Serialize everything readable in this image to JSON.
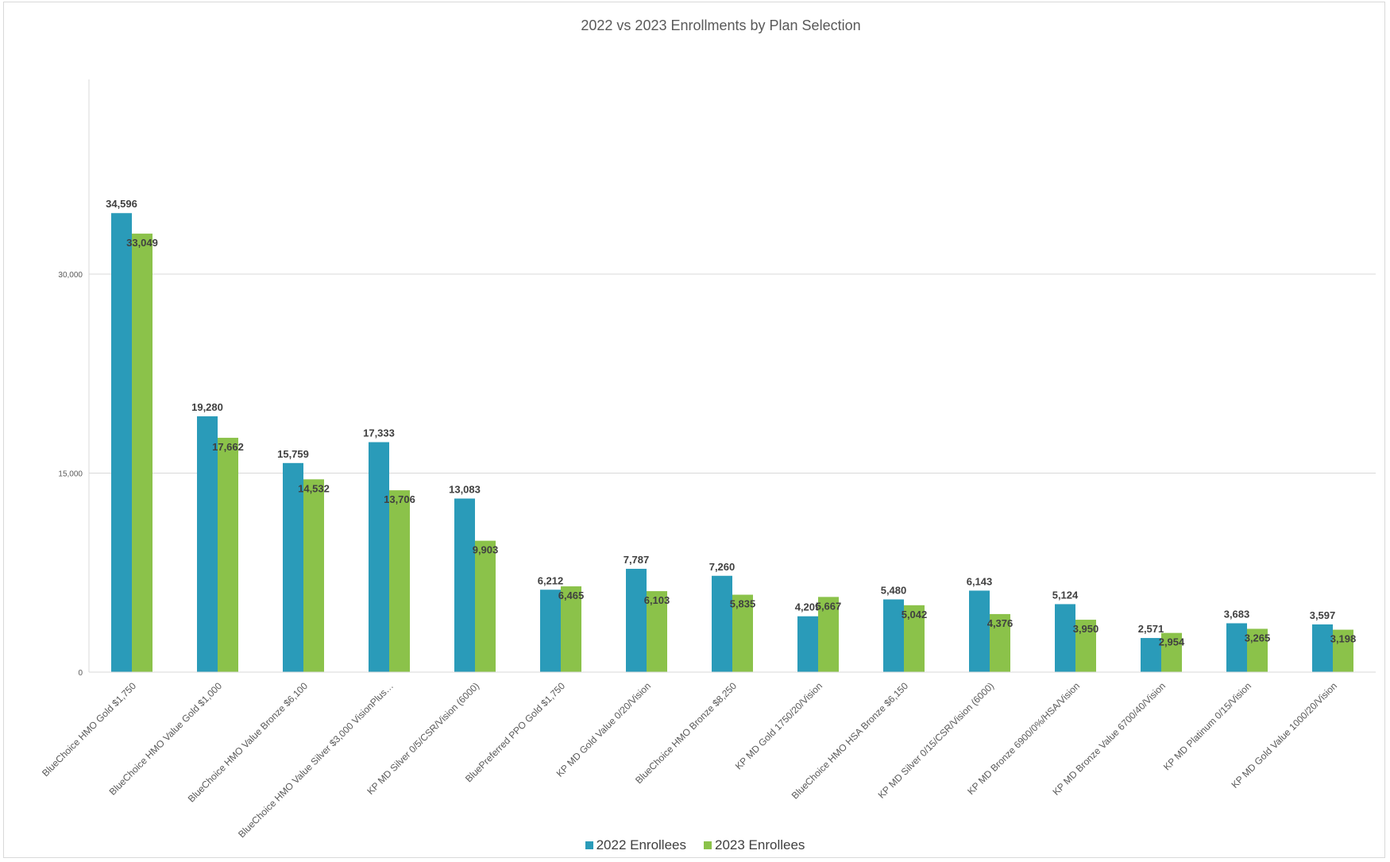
{
  "chart_data": {
    "type": "bar",
    "title": "2022 vs 2023 Enrollments by Plan Selection",
    "xlabel": "",
    "ylabel": "",
    "ylim": [
      0,
      40000
    ],
    "yticks": [
      0,
      15000,
      30000
    ],
    "ytick_labels": [
      "0",
      "15,000",
      "30,000"
    ],
    "grid": true,
    "legend_position": "bottom",
    "categories": [
      "BlueChoice HMO Gold $1,750",
      "BlueChoice HMO Value Gold $1,000",
      "BlueChoice HMO Value Bronze $6,100",
      "BlueChoice HMO Value Silver $3,000 VisionPlus…",
      "KP MD Silver 0/5/CSR/Vision (6000)",
      "BluePreferred PPO Gold $1,750",
      "KP MD Gold Value 0/20/Vision",
      "BlueChoice HMO Bronze $8,250",
      "KP MD Gold 1750/20/Vision",
      "BlueChoice HMO HSA Bronze $6,150",
      "KP MD Silver 0/15/CSR/Vision (6000)",
      "KP MD Bronze 6900/0%/HSA/Vision",
      "KP MD Bronze Value 6700/40/Vision",
      "KP MD Platinum 0/15/Vision",
      "KP MD Gold Value 1000/20/Vision"
    ],
    "series": [
      {
        "name": "2022 Enrollees",
        "color": "#2a9bb9",
        "values": [
          34596,
          19280,
          15759,
          17333,
          13083,
          6212,
          7787,
          7260,
          4209,
          5480,
          6143,
          5124,
          2571,
          3683,
          3597
        ],
        "labels": [
          "34,596",
          "19,280",
          "15,759",
          "17,333",
          "13,083",
          "6,212",
          "7,787",
          "7,260",
          "4,209",
          "5,480",
          "6,143",
          "5,124",
          "2,571",
          "3,683",
          "3,597"
        ]
      },
      {
        "name": "2023 Enrollees",
        "color": "#8bc24a",
        "values": [
          33049,
          17662,
          14532,
          13706,
          9903,
          6465,
          6103,
          5835,
          5667,
          5042,
          4376,
          3950,
          2954,
          3265,
          3198
        ],
        "labels": [
          "33,049",
          "17,662",
          "14,532",
          "13,706",
          "9,903",
          "6,465",
          "6,103",
          "5,835",
          "5,667",
          "5,042",
          "4,376",
          "3,950",
          "2,954",
          "3,265",
          "3,198"
        ]
      }
    ]
  }
}
